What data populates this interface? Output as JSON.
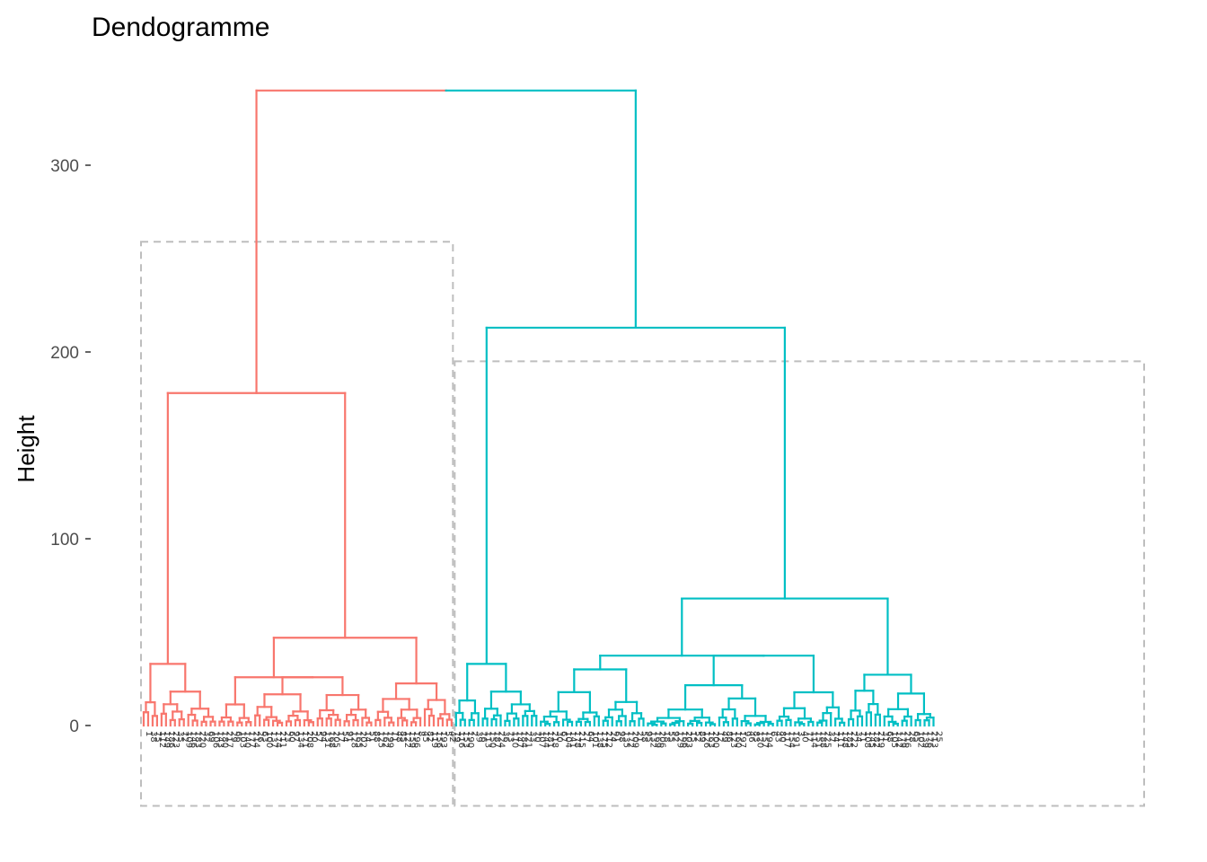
{
  "chart_data": {
    "type": "dendrogram",
    "title": "Dendogramme",
    "xlabel": "",
    "ylabel": "Height",
    "ylim": [
      -43,
      340
    ],
    "y_ticks": [
      0,
      100,
      200,
      300
    ],
    "grid": false,
    "colors": {
      "cluster_1": "#F8766D",
      "cluster_2": "#00BFC4",
      "rect": "#BEBEBE",
      "axis": "#333333"
    },
    "leaf_count_approx": 225,
    "root_height": 340,
    "clusters": [
      {
        "id": "cluster_1",
        "color": "#F8766D",
        "height": 178,
        "subclusters": [
          {
            "height": 33,
            "children": [
              4,
              13
            ]
          },
          {
            "height": 47,
            "children": [
              8,
              27,
              18
            ]
          }
        ]
      },
      {
        "id": "cluster_2",
        "color": "#00BFC4",
        "height": 213,
        "subclusters": [
          {
            "height": 33,
            "children": [
              6,
              13
            ]
          },
          {
            "height": 68,
            "children": [
              24,
              45,
              20
            ]
          }
        ]
      }
    ],
    "rect_boxes": [
      {
        "cluster": "cluster_1",
        "y_top": 259,
        "y_bottom": -43
      },
      {
        "cluster": "cluster_2",
        "y_top": 195,
        "y_bottom": -43
      }
    ]
  }
}
